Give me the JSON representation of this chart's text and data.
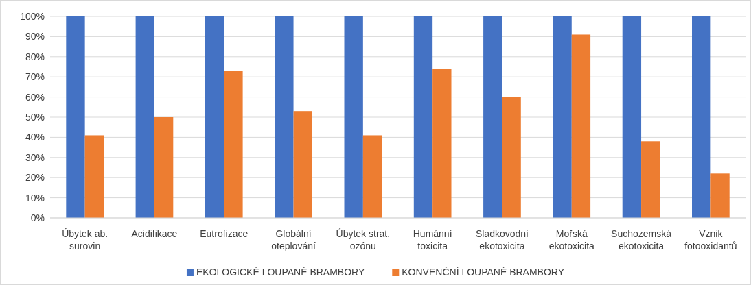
{
  "chart_data": {
    "type": "bar",
    "categories": [
      "Úbytek ab.\nsurovin",
      "Acidifikace",
      "Eutrofizace",
      "Globální\noteplování",
      "Úbytek strat.\nozónu",
      "Humánní\ntoxicita",
      "Sladkovodní\nekotoxicita",
      "Mořská\nekotoxicita",
      "Suchozemská\nekotoxicita",
      "Vznik\nfotooxidantů"
    ],
    "series": [
      {
        "name": "EKOLOGICKÉ LOUPANÉ BRAMBORY",
        "color": "#4472c4",
        "values": [
          100,
          100,
          100,
          100,
          100,
          100,
          100,
          100,
          100,
          100
        ]
      },
      {
        "name": "KONVENČNÍ LOUPANÉ BRAMBORY",
        "color": "#ed7d31",
        "values": [
          41,
          50,
          73,
          53,
          41,
          74,
          60,
          91,
          38,
          22
        ]
      }
    ],
    "ylim": [
      0,
      100
    ],
    "yticks": [
      {
        "value": 0,
        "label": "0%"
      },
      {
        "value": 10,
        "label": "10%"
      },
      {
        "value": 20,
        "label": "20%"
      },
      {
        "value": 30,
        "label": "30%"
      },
      {
        "value": 40,
        "label": "40%"
      },
      {
        "value": 50,
        "label": "50%"
      },
      {
        "value": 60,
        "label": "60%"
      },
      {
        "value": 70,
        "label": "70%"
      },
      {
        "value": 80,
        "label": "80%"
      },
      {
        "value": 90,
        "label": "90%"
      },
      {
        "value": 100,
        "label": "100%"
      }
    ],
    "grid": "y",
    "legend": "bottom"
  }
}
